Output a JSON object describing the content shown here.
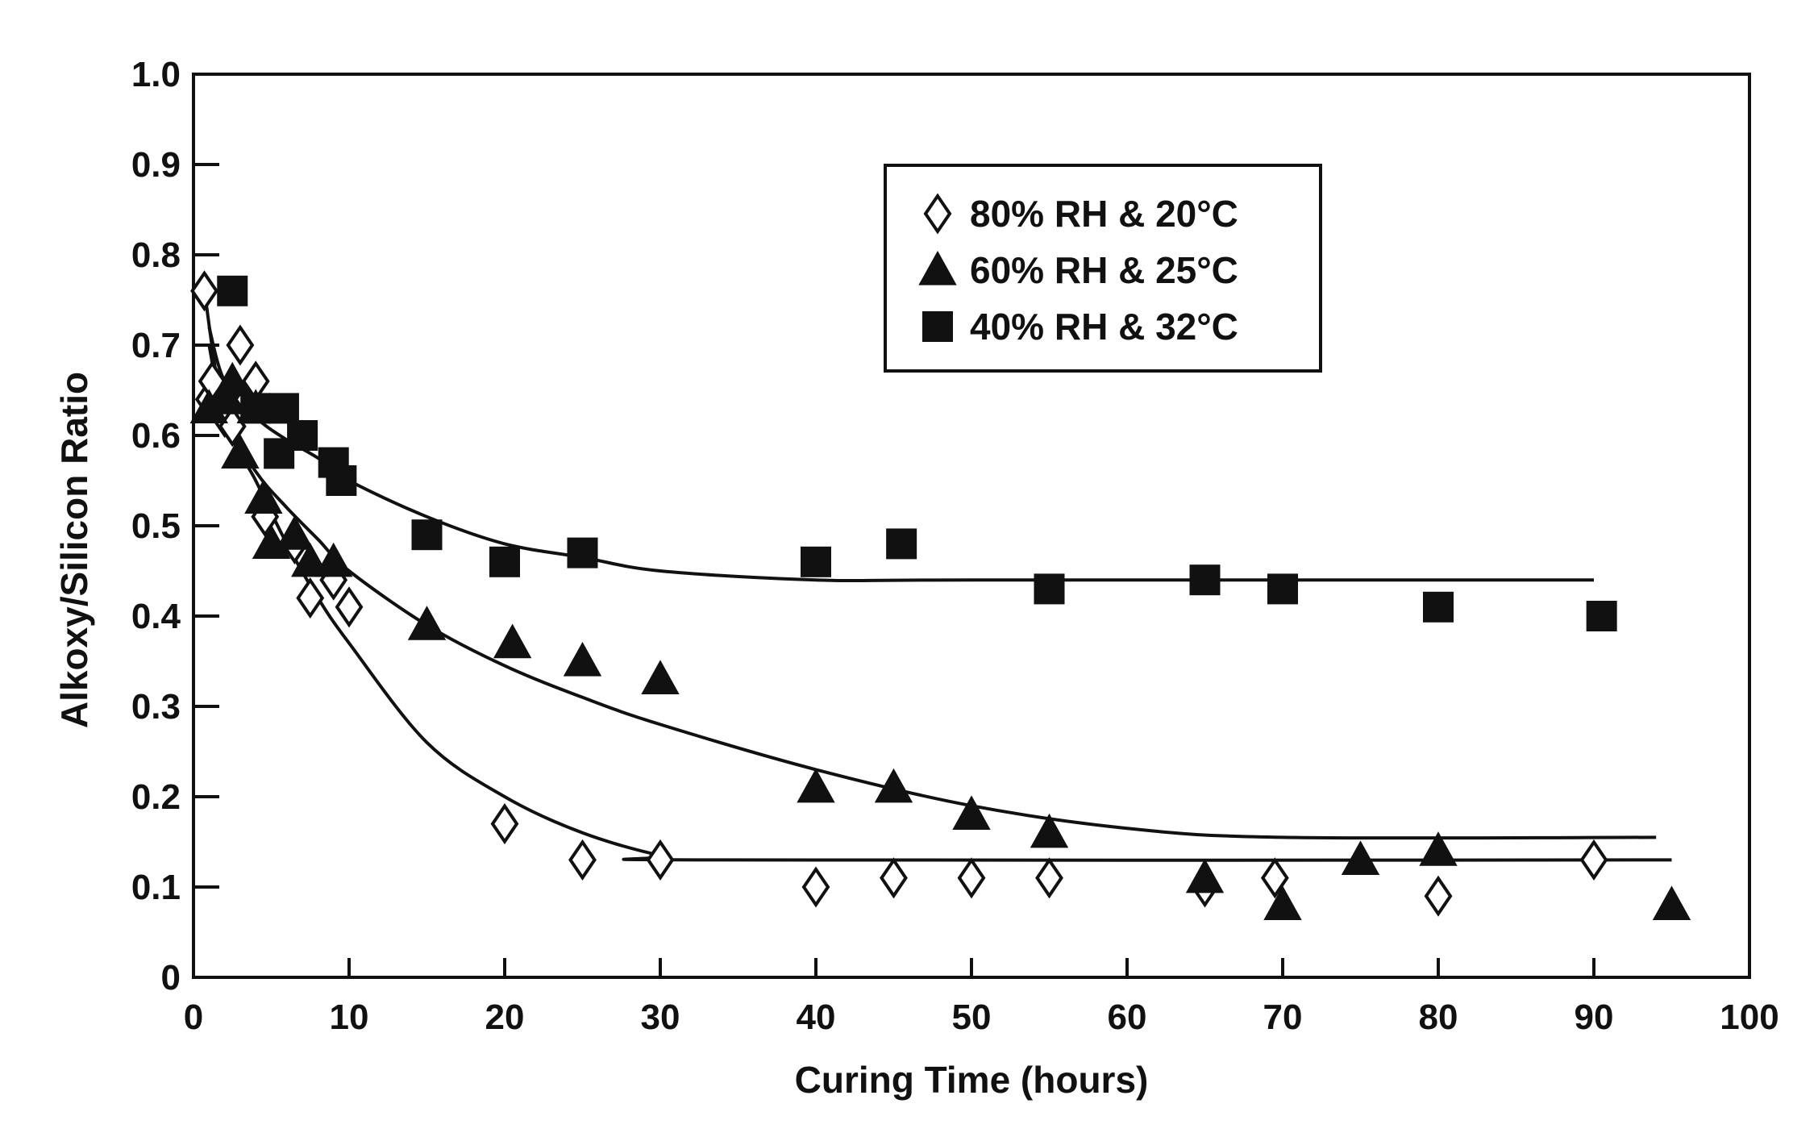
{
  "chart_data": {
    "type": "scatter",
    "xlabel": "Curing Time (hours)",
    "ylabel": "Alkoxy/Silicon Ratio",
    "xlim": [
      0,
      100
    ],
    "ylim": [
      0,
      1.0
    ],
    "xticks": [
      0,
      10,
      20,
      30,
      40,
      50,
      60,
      70,
      80,
      90,
      100
    ],
    "xtick_labels": [
      "0",
      "10",
      "20",
      "30",
      "40",
      "50",
      "60",
      "70",
      "80",
      "90",
      "100"
    ],
    "yticks": [
      0,
      0.1,
      0.2,
      0.3,
      0.4,
      0.5,
      0.6,
      0.7,
      0.8,
      0.9,
      1.0
    ],
    "ytick_labels": [
      "0",
      "0.1",
      "0.2",
      "0.3",
      "0.4",
      "0.5",
      "0.6",
      "0.7",
      "0.8",
      "0.9",
      "1.0"
    ],
    "grid": false,
    "legend_position": "top-center",
    "series": [
      {
        "name": "80% RH & 20°C",
        "marker": "diamond-open",
        "color": "#111111",
        "points": [
          [
            0.7,
            0.76
          ],
          [
            1.0,
            0.64
          ],
          [
            1.2,
            0.66
          ],
          [
            2.0,
            0.62
          ],
          [
            2.5,
            0.61
          ],
          [
            3.0,
            0.7
          ],
          [
            3.5,
            0.64
          ],
          [
            4.0,
            0.66
          ],
          [
            4.6,
            0.51
          ],
          [
            6.5,
            0.48
          ],
          [
            7.5,
            0.42
          ],
          [
            9.0,
            0.44
          ],
          [
            10.0,
            0.41
          ],
          [
            20.0,
            0.17
          ],
          [
            25.0,
            0.13
          ],
          [
            30.0,
            0.13
          ],
          [
            40.0,
            0.1
          ],
          [
            45.0,
            0.11
          ],
          [
            50.0,
            0.11
          ],
          [
            55.0,
            0.11
          ],
          [
            65.0,
            0.1
          ],
          [
            69.5,
            0.11
          ],
          [
            80.0,
            0.09
          ],
          [
            90.0,
            0.13
          ]
        ],
        "fit": [
          [
            0.7,
            0.76
          ],
          [
            2,
            0.62
          ],
          [
            4,
            0.55
          ],
          [
            6,
            0.48
          ],
          [
            8,
            0.42
          ],
          [
            10,
            0.37
          ],
          [
            15,
            0.26
          ],
          [
            20,
            0.2
          ],
          [
            25,
            0.16
          ],
          [
            30,
            0.135
          ],
          [
            33,
            0.13
          ],
          [
            95,
            0.13
          ]
        ]
      },
      {
        "name": "60% RH & 25°C",
        "marker": "triangle-filled",
        "color": "#111111",
        "points": [
          [
            1.0,
            0.63
          ],
          [
            2.0,
            0.64
          ],
          [
            2.5,
            0.66
          ],
          [
            3.0,
            0.58
          ],
          [
            4.0,
            0.63
          ],
          [
            4.5,
            0.53
          ],
          [
            5.0,
            0.48
          ],
          [
            6.5,
            0.49
          ],
          [
            7.5,
            0.46
          ],
          [
            9.0,
            0.46
          ],
          [
            15.0,
            0.39
          ],
          [
            20.5,
            0.37
          ],
          [
            25.0,
            0.35
          ],
          [
            30.0,
            0.33
          ],
          [
            40.0,
            0.21
          ],
          [
            45.0,
            0.21
          ],
          [
            50.0,
            0.18
          ],
          [
            55.0,
            0.16
          ],
          [
            65.0,
            0.11
          ],
          [
            70.0,
            0.08
          ],
          [
            75.0,
            0.13
          ],
          [
            80.0,
            0.14
          ],
          [
            95.0,
            0.08
          ]
        ],
        "fit": [
          [
            1,
            0.7
          ],
          [
            2,
            0.62
          ],
          [
            4,
            0.56
          ],
          [
            6,
            0.52
          ],
          [
            8,
            0.485
          ],
          [
            10,
            0.45
          ],
          [
            15,
            0.39
          ],
          [
            20,
            0.345
          ],
          [
            25,
            0.31
          ],
          [
            30,
            0.28
          ],
          [
            40,
            0.23
          ],
          [
            50,
            0.19
          ],
          [
            60,
            0.165
          ],
          [
            70,
            0.155
          ],
          [
            94,
            0.155
          ]
        ]
      },
      {
        "name": "40% RH & 32°C",
        "marker": "square-filled",
        "color": "#111111",
        "points": [
          [
            2.5,
            0.76
          ],
          [
            4.0,
            0.63
          ],
          [
            5.5,
            0.58
          ],
          [
            5.8,
            0.63
          ],
          [
            7.0,
            0.6
          ],
          [
            9.0,
            0.57
          ],
          [
            9.5,
            0.55
          ],
          [
            15.0,
            0.49
          ],
          [
            20.0,
            0.46
          ],
          [
            25.0,
            0.47
          ],
          [
            40.0,
            0.46
          ],
          [
            45.5,
            0.48
          ],
          [
            55.0,
            0.43
          ],
          [
            65.0,
            0.44
          ],
          [
            70.0,
            0.43
          ],
          [
            80.0,
            0.41
          ],
          [
            90.5,
            0.4
          ]
        ],
        "fit": [
          [
            1,
            0.72
          ],
          [
            2,
            0.66
          ],
          [
            4,
            0.62
          ],
          [
            6,
            0.595
          ],
          [
            8,
            0.575
          ],
          [
            10,
            0.55
          ],
          [
            15,
            0.51
          ],
          [
            20,
            0.48
          ],
          [
            25,
            0.465
          ],
          [
            30,
            0.45
          ],
          [
            40,
            0.44
          ],
          [
            50,
            0.44
          ],
          [
            90,
            0.44
          ]
        ]
      }
    ]
  }
}
